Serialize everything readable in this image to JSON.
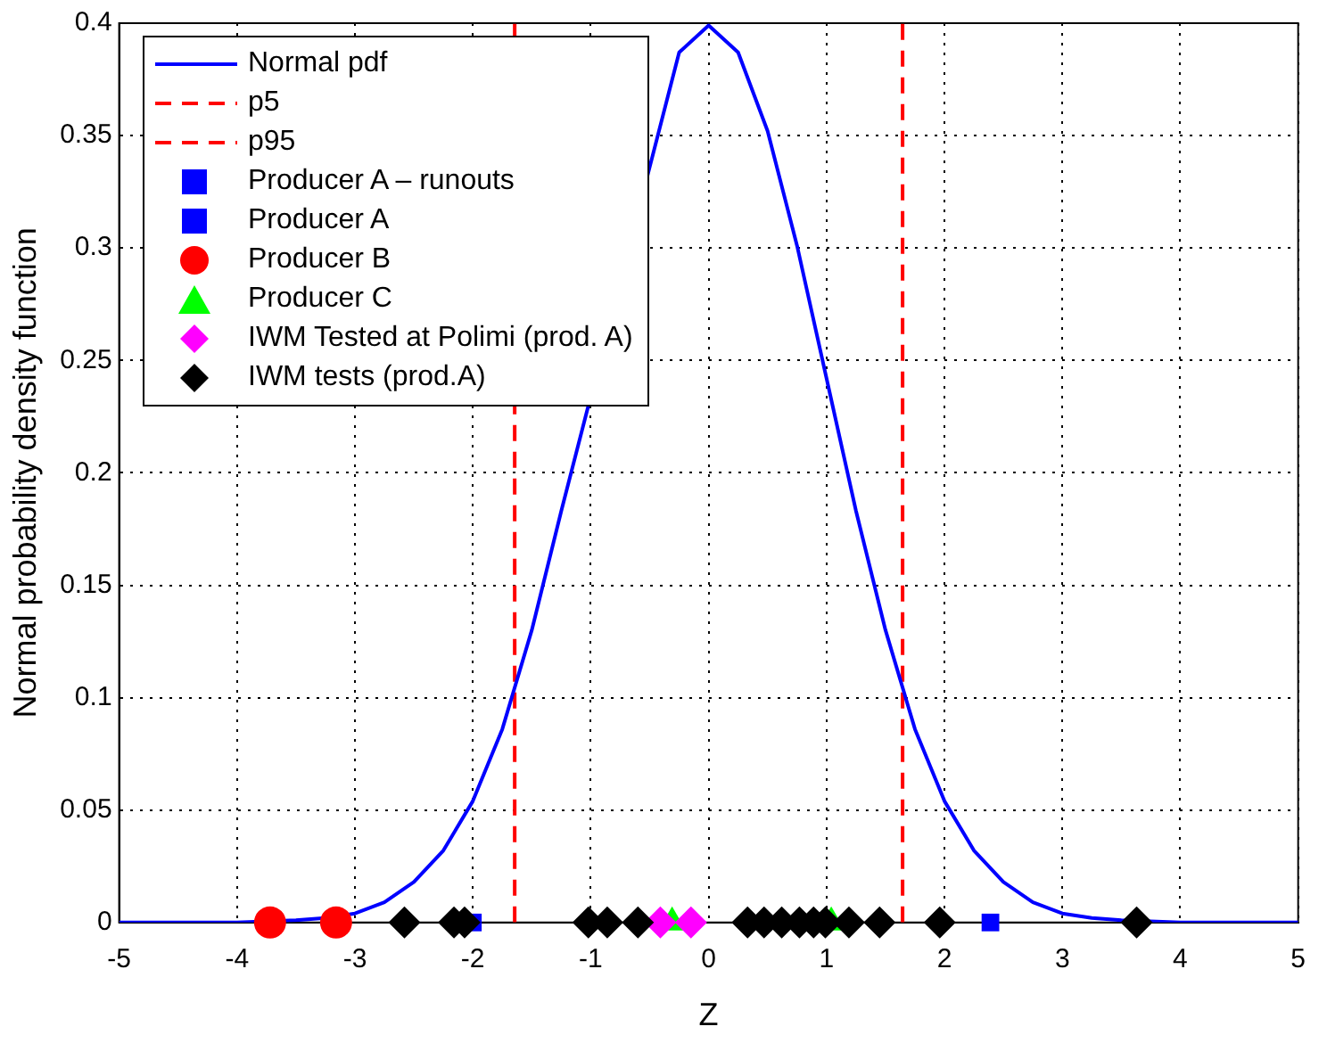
{
  "chart_data": {
    "type": "scatter",
    "xlabel": "Z",
    "ylabel": "Normal probability density function",
    "xlim": [
      -5,
      5
    ],
    "xticks": [
      -5,
      -4,
      -3,
      -2,
      -1,
      0,
      1,
      2,
      3,
      4,
      5
    ],
    "ylim": [
      0,
      0.4
    ],
    "yticks": [
      0,
      0.05,
      0.1,
      0.15,
      0.2,
      0.25,
      0.3,
      0.35,
      0.4
    ],
    "grid": true,
    "legend": "top left",
    "series": [
      {
        "name": "Normal pdf",
        "type": "line",
        "color": "#0000ff",
        "marker": "none",
        "line_style": "solid",
        "x": [
          -5,
          -4,
          -3.5,
          -3.25,
          -3,
          -2.75,
          -2.5,
          -2.25,
          -2,
          -1.75,
          -1.5,
          -1.25,
          -1,
          -0.75,
          -0.5,
          -0.25,
          0,
          0.25,
          0.5,
          0.75,
          1,
          1.25,
          1.5,
          1.75,
          2,
          2.25,
          2.5,
          2.75,
          3,
          3.25,
          3.5,
          4,
          5
        ],
        "values": [
          0,
          0,
          0.001,
          0.002,
          0.004,
          0.009,
          0.018,
          0.032,
          0.054,
          0.086,
          0.13,
          0.183,
          null,
          null,
          null,
          0.387,
          0.399,
          0.387,
          0.352,
          0.301,
          0.242,
          0.183,
          0.13,
          0.086,
          0.054,
          0.032,
          0.018,
          0.009,
          0.004,
          0.002,
          0.001,
          0,
          0
        ]
      },
      {
        "name": "p5",
        "type": "line",
        "color": "#ff0000",
        "marker": "none",
        "line_style": "dashed",
        "x": [
          -1.645,
          -1.645
        ],
        "values": [
          0,
          0.4
        ]
      },
      {
        "name": "p95",
        "type": "line",
        "color": "#ff0000",
        "marker": "none",
        "line_style": "dashed",
        "x": [
          1.645,
          1.645
        ],
        "values": [
          0,
          0.4
        ]
      },
      {
        "name": "Producer A – runouts",
        "color": "#0000ff",
        "marker": "square",
        "x": [
          2.39
        ],
        "values": [
          0
        ]
      },
      {
        "name": "Producer A",
        "color": "#0000ff",
        "marker": "square",
        "x": [
          -2.0
        ],
        "values": [
          0
        ]
      },
      {
        "name": "Producer B",
        "color": "#ff0000",
        "marker": "circle",
        "x": [
          -3.72,
          -3.16
        ],
        "values": [
          0,
          0
        ]
      },
      {
        "name": "Producer C",
        "color": "#00ff00",
        "marker": "triangle",
        "x": [
          -0.31,
          1.04
        ],
        "values": [
          0,
          0
        ]
      },
      {
        "name": "IWM Tested at Polimi (prod. A)",
        "color": "#ff00ff",
        "marker": "diamond",
        "x": [
          -0.41,
          -0.15
        ],
        "values": [
          0,
          0
        ]
      },
      {
        "name": "IWM tests (prod.A)",
        "color": "#000000",
        "marker": "diamond",
        "x": [
          -2.58,
          -2.16,
          -2.07,
          -1.02,
          -0.86,
          -0.6,
          0.33,
          0.47,
          0.62,
          0.77,
          0.89,
          0.99,
          1.19,
          1.45,
          1.96,
          3.63
        ],
        "values": [
          0,
          0,
          0,
          0,
          0,
          0,
          0,
          0,
          0,
          0,
          0,
          0,
          0,
          0,
          0,
          0
        ]
      }
    ]
  }
}
